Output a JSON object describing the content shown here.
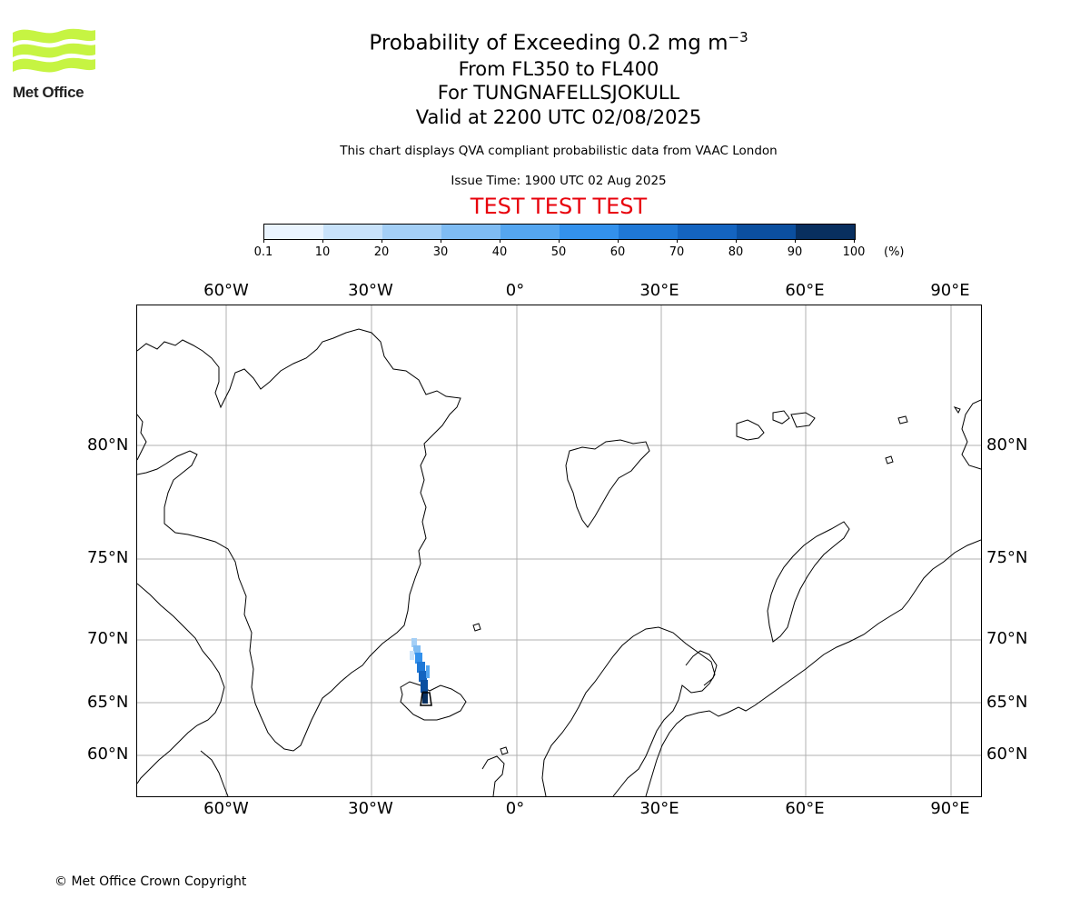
{
  "logo": {
    "text": "Met Office",
    "name": "met-office-logo",
    "color": "#c6f442"
  },
  "title": {
    "line1_main": "Probability of Exceeding 0.2 mg m",
    "line1_sup": "−3",
    "line2": "From FL350 to FL400",
    "line3": "For TUNGNAFELLSJOKULL",
    "line4": "Valid at 2200 UTC 02/08/2025"
  },
  "subtitle": "This chart displays QVA compliant probabilistic data from VAAC London",
  "issue_time": "Issue Time: 1900 UTC 02 Aug 2025",
  "test_banner": "TEST TEST TEST",
  "test_color": "#e8000b",
  "colorbar": {
    "ticks": [
      "0.1",
      "10",
      "20",
      "30",
      "40",
      "50",
      "60",
      "70",
      "80",
      "90",
      "100"
    ],
    "unit": "(%)",
    "colors": [
      "#eaf4fe",
      "#c8e2fa",
      "#a4cff6",
      "#7fbcf3",
      "#55a6f0",
      "#3391ec",
      "#1f78d6",
      "#1464c0",
      "#0b4f9f",
      "#082f5f"
    ]
  },
  "map": {
    "lon_labels": [
      "60°W",
      "30°W",
      "0°",
      "30°E",
      "60°E",
      "90°E"
    ],
    "lat_labels": [
      "80°N",
      "75°N",
      "70°N",
      "65°N",
      "60°N"
    ],
    "grid": true,
    "volcano": "TUNGNAFELLSJOKULL",
    "plume_direction": "north-northwest from central Iceland"
  },
  "copyright": "© Met Office Crown Copyright"
}
